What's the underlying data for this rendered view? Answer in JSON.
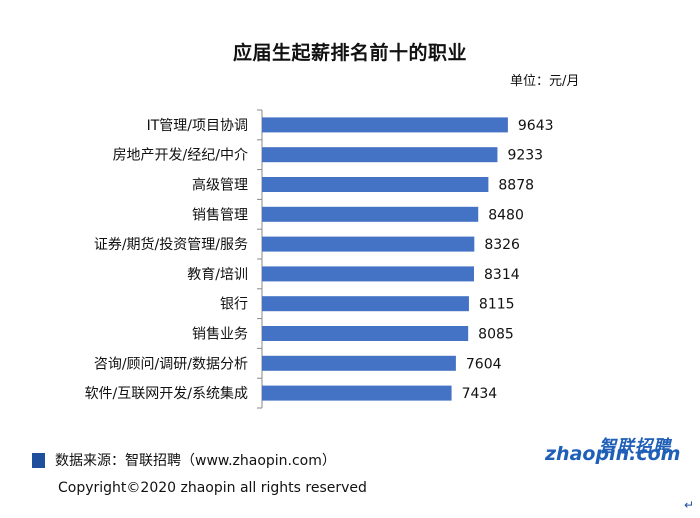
{
  "page": {
    "unit": "单位：元/月",
    "source": "数据来源：智联招聘（www.zhaopin.com）",
    "copyright": "Copyright©2020 zhaopin all rights reserved",
    "logo_cn": "智联招聘",
    "logo_en": "zhaopin.com",
    "return_mark": "↵"
  },
  "chart_data": {
    "type": "bar",
    "orientation": "horizontal",
    "title": "应届生起薪排名前十的职业",
    "categories": [
      "IT管理/项目协调",
      "房地产开发/经纪/中介",
      "高级管理",
      "销售管理",
      "证券/期货/投资管理/服务",
      "教育/培训",
      "银行",
      "销售业务",
      "咨询/顾问/调研/数据分析",
      "软件/互联网开发/系统集成"
    ],
    "values": [
      9643,
      9233,
      8878,
      8480,
      8326,
      8314,
      8115,
      8085,
      7604,
      7434
    ],
    "xlim": [
      0,
      10000
    ],
    "data_labels": true,
    "grid": false,
    "bar_color": "#4472c4"
  }
}
